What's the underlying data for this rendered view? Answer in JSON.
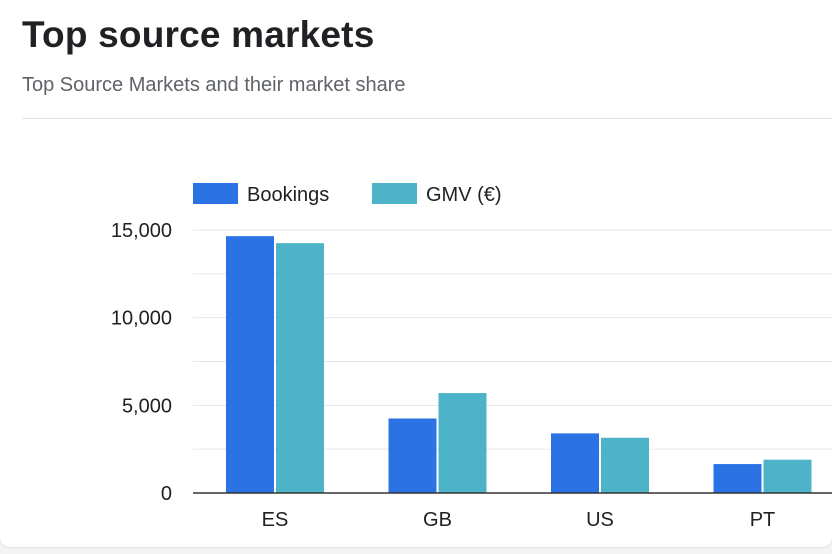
{
  "header": {
    "title": "Top source markets",
    "subtitle": "Top Source Markets and their market share"
  },
  "colors": {
    "bookings": "#2b73e4",
    "gmv": "#4db3c9",
    "gridline": "#e6e6e6",
    "baseline": "#333333",
    "text": "#202124"
  },
  "chart_data": {
    "type": "bar",
    "categories": [
      "ES",
      "GB",
      "US",
      "PT"
    ],
    "series": [
      {
        "name": "Bookings",
        "values": [
          14650,
          4250,
          3400,
          1650
        ],
        "color": "#2b73e4"
      },
      {
        "name": "GMV (€)",
        "values": [
          14250,
          5700,
          3150,
          1900
        ],
        "color": "#4db3c9"
      }
    ],
    "ylim": [
      0,
      15000
    ],
    "yticks": [
      "0",
      "5,000",
      "10,000",
      "15,000"
    ],
    "ytick_values": [
      0,
      5000,
      10000,
      15000
    ],
    "minor_gridlines": [
      2500,
      7500,
      12500
    ],
    "grid": true,
    "legend": "top-left",
    "xlabel": "",
    "ylabel": ""
  }
}
